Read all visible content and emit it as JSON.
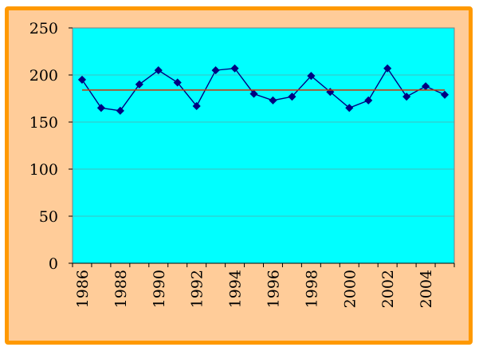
{
  "chart_data": {
    "type": "line",
    "title": "",
    "xlabel": "",
    "ylabel": "",
    "x": [
      1986,
      1987,
      1988,
      1989,
      1990,
      1991,
      1992,
      1993,
      1994,
      1995,
      1996,
      1997,
      1998,
      1999,
      2000,
      2001,
      2002,
      2003,
      2004,
      2005
    ],
    "x_tick_labels": [
      "1986",
      "1988",
      "1990",
      "1992",
      "1994",
      "1996",
      "1998",
      "2000",
      "2002",
      "2004"
    ],
    "y_tick_labels": [
      "0",
      "50",
      "100",
      "150",
      "200",
      "250"
    ],
    "ylim": [
      0,
      250
    ],
    "grid": true,
    "series": [
      {
        "values": [
          195,
          165,
          162,
          190,
          205,
          192,
          167,
          205,
          207,
          180,
          173,
          177,
          199,
          182,
          165,
          173,
          207,
          177,
          188,
          179
        ],
        "color": "#000080",
        "marker": "diamond"
      },
      {
        "values": [
          184,
          184
        ],
        "x": [
          1986,
          2005
        ],
        "color": "#cc3300",
        "marker": "none"
      }
    ],
    "plot_background": "#00ffff",
    "frame_background": "#ffcc99",
    "frame_border": "#ff9900"
  }
}
